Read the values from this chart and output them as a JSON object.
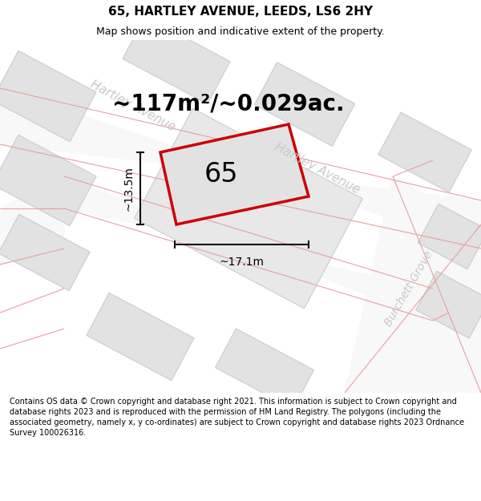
{
  "title": "65, HARTLEY AVENUE, LEEDS, LS6 2HY",
  "subtitle": "Map shows position and indicative extent of the property.",
  "area_label": "~117m²/~0.029ac.",
  "plot_number": "65",
  "width_label": "~17.1m",
  "height_label": "~13.5m",
  "footer_text": "Contains OS data © Crown copyright and database right 2021. This information is subject to Crown copyright and database rights 2023 and is reproduced with the permission of HM Land Registry. The polygons (including the associated geometry, namely x, y co-ordinates) are subject to Crown copyright and database rights 2023 Ordnance Survey 100026316.",
  "bg_color": "#efefef",
  "road_fill": "#f8f8f8",
  "block_fill": "#e2e2e2",
  "block_edge": "#cccccc",
  "road_line_color": "#e8a0a0",
  "plot_fill": "#e2e2e2",
  "plot_edge": "#cc0000",
  "street_color": "#c8c8c8",
  "dim_color": "#111111",
  "title_fontsize": 11,
  "subtitle_fontsize": 9,
  "area_fontsize": 20,
  "plot_label_fontsize": 24,
  "street_fontsize": 11,
  "dim_fontsize": 10,
  "footer_fontsize": 7
}
